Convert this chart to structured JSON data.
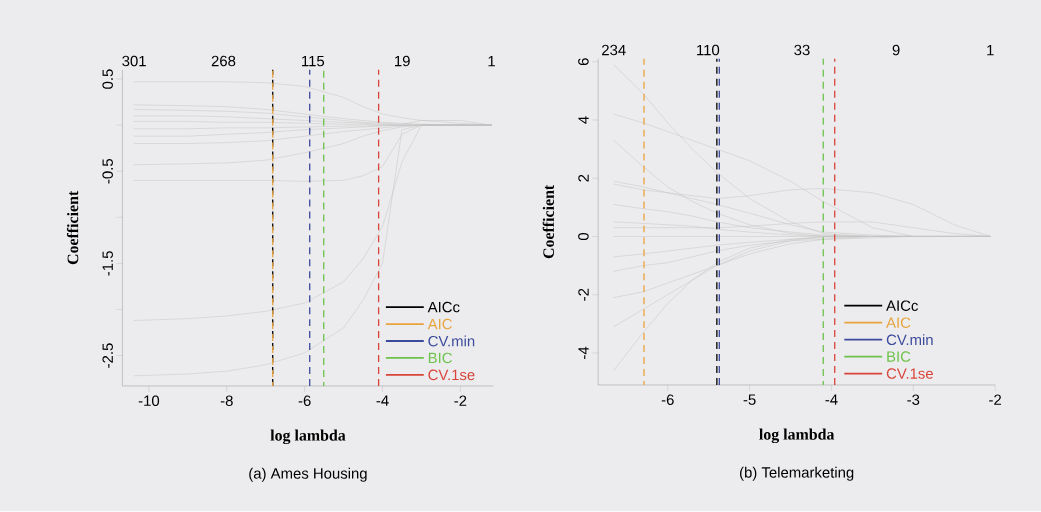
{
  "chart_data": [
    {
      "type": "line",
      "title": "(a) Ames Housing",
      "xlabel": "log lambda",
      "ylabel": "Coefficient",
      "legend": "bottom right",
      "line_style": "solid",
      "xlim": [
        -10.68,
        -1.15
      ],
      "ylim": [
        -2.83,
        0.6
      ],
      "xticks": [
        -10,
        -8,
        -6,
        -4,
        -2
      ],
      "yticks": [
        0.5,
        {
          "value": 0,
          "label": null
        },
        -0.5,
        {
          "value": -1,
          "label": null
        },
        -1.5,
        {
          "value": -2,
          "label": null
        },
        -2.5
      ],
      "annotations": [
        "301",
        "268",
        "115",
        "19",
        "1"
      ],
      "x": [
        -10.38,
        -9,
        -8,
        -7,
        -6,
        -5,
        -4.5,
        -4,
        -3.5,
        -3,
        -2,
        -1.2
      ],
      "series": [
        {
          "color": "#c4c4c4",
          "values": [
            0.47,
            0.47,
            0.47,
            0.46,
            0.42,
            0.3,
            0.2,
            0.12,
            0.08,
            0.05,
            0.02,
            0
          ]
        },
        {
          "color": "#c4c4c4",
          "values": [
            0.22,
            0.21,
            0.2,
            0.17,
            0.12,
            0.07,
            0.05,
            0.03,
            0.02,
            0.01,
            0,
            0
          ]
        },
        {
          "color": "#c4c4c4",
          "values": [
            0.17,
            0.16,
            0.15,
            0.13,
            0.09,
            0.05,
            0.03,
            0.02,
            0.01,
            0.05,
            0.05,
            0
          ]
        },
        {
          "color": "#c4c4c4",
          "values": [
            0.1,
            0.1,
            0.09,
            0.07,
            0.05,
            0.03,
            0.02,
            0.01,
            0,
            0,
            0,
            0
          ]
        },
        {
          "color": "#c4c4c4",
          "values": [
            0.04,
            0.04,
            0.03,
            0.03,
            0.02,
            0.01,
            0.01,
            0,
            0,
            0,
            0,
            0
          ]
        },
        {
          "color": "#c4c4c4",
          "values": [
            -0.04,
            -0.04,
            -0.03,
            -0.03,
            -0.02,
            -0.01,
            -0.01,
            0,
            0,
            0,
            0,
            0
          ]
        },
        {
          "color": "#c4c4c4",
          "values": [
            -0.12,
            -0.12,
            -0.1,
            -0.08,
            -0.05,
            -0.03,
            -0.02,
            -0.01,
            0,
            0,
            0,
            0
          ]
        },
        {
          "color": "#c4c4c4",
          "values": [
            -0.2,
            -0.2,
            -0.19,
            -0.17,
            -0.12,
            -0.07,
            -0.05,
            -0.03,
            -0.01,
            0,
            0,
            0
          ]
        },
        {
          "color": "#c4c4c4",
          "values": [
            -0.43,
            -0.42,
            -0.41,
            -0.38,
            -0.3,
            -0.2,
            -0.12,
            -0.06,
            -0.02,
            0,
            0,
            0
          ]
        },
        {
          "color": "#c4c4c4",
          "values": [
            -0.6,
            -0.6,
            -0.6,
            -0.6,
            -0.61,
            -0.6,
            -0.55,
            -0.45,
            -0.1,
            0,
            0,
            0
          ]
        },
        {
          "color": "#c4c4c4",
          "values": [
            -2.12,
            -2.1,
            -2.07,
            -2.02,
            -1.93,
            -1.7,
            -1.45,
            -1.1,
            -0.4,
            0,
            0,
            0
          ]
        },
        {
          "color": "#c4c4c4",
          "values": [
            -2.72,
            -2.7,
            -2.67,
            -2.6,
            -2.47,
            -2.2,
            -1.9,
            -1.5,
            -0.05,
            0,
            0,
            0
          ]
        }
      ],
      "ref_lines": [
        {
          "axis": "x",
          "value": -6.82,
          "label": "AICc",
          "color": "#000000",
          "line_style": "dashed"
        },
        {
          "axis": "x",
          "value": -6.82,
          "label": "AIC",
          "color": "#e8a33d",
          "line_style": "dashed"
        },
        {
          "axis": "x",
          "value": -5.87,
          "label": "CV.min",
          "color": "#3c4a9c",
          "line_style": "dashed"
        },
        {
          "axis": "x",
          "value": -5.51,
          "label": "BIC",
          "color": "#6cc24a",
          "line_style": "dashed"
        },
        {
          "axis": "x",
          "value": -4.1,
          "label": "CV.1se",
          "color": "#d9443a",
          "line_style": "dashed"
        }
      ]
    },
    {
      "type": "line",
      "title": "(b) Telemarketing",
      "xlabel": "log lambda",
      "ylabel": "Coefficient",
      "legend": "bottom right",
      "line_style": "solid",
      "xlim": [
        -6.85,
        -2.0
      ],
      "ylim": [
        -5.1,
        6.1
      ],
      "xticks": [
        -6,
        -5,
        -4,
        -3,
        -2
      ],
      "yticks": [
        6,
        4,
        2,
        0,
        -2,
        -4
      ],
      "annotations": [
        "234",
        "110",
        "33",
        "9",
        "1"
      ],
      "x": [
        -6.66,
        -6.3,
        -6,
        -5.7,
        -5.4,
        -5,
        -4.5,
        -4.1,
        -3.5,
        -3,
        -2.5,
        -2.06
      ],
      "series": [
        {
          "color": "#c4c4c4",
          "values": [
            5.9,
            4.9,
            3.9,
            3.0,
            2.2,
            1.3,
            0.5,
            0.1,
            0,
            0,
            0,
            0
          ]
        },
        {
          "color": "#c4c4c4",
          "values": [
            4.2,
            3.9,
            3.6,
            3.3,
            3.0,
            2.6,
            1.9,
            1.2,
            0.3,
            0,
            0,
            0
          ]
        },
        {
          "color": "#c4c4c4",
          "values": [
            3.3,
            2.4,
            1.7,
            1.2,
            0.8,
            0.4,
            0.1,
            0,
            0,
            0,
            0,
            0
          ]
        },
        {
          "color": "#c4c4c4",
          "values": [
            1.8,
            1.6,
            1.5,
            1.4,
            1.3,
            1.4,
            1.6,
            1.65,
            1.5,
            1.1,
            0.4,
            0
          ]
        },
        {
          "color": "#c4c4c4",
          "values": [
            1.9,
            1.7,
            1.5,
            1.3,
            1.1,
            0.8,
            0.4,
            0.15,
            0.05,
            0,
            0,
            0
          ]
        },
        {
          "color": "#c4c4c4",
          "values": [
            1.1,
            0.95,
            0.85,
            0.7,
            0.5,
            0.3,
            0.15,
            0.05,
            0,
            0,
            0,
            0
          ]
        },
        {
          "color": "#c4c4c4",
          "values": [
            0.5,
            0.45,
            0.4,
            0.35,
            0.25,
            0.15,
            0.05,
            0.02,
            0,
            0,
            0,
            0
          ]
        },
        {
          "color": "#c4c4c4",
          "values": [
            0.3,
            0.3,
            0.3,
            0.3,
            0.3,
            0.35,
            0.45,
            0.5,
            0.5,
            0.3,
            0.1,
            0
          ]
        },
        {
          "color": "#c4c4c4",
          "values": [
            0,
            0,
            0,
            0,
            0,
            0,
            0,
            0,
            0,
            0,
            0,
            0
          ]
        },
        {
          "color": "#c4c4c4",
          "values": [
            -0.7,
            -0.6,
            -0.5,
            -0.4,
            -0.3,
            -0.2,
            -0.1,
            -0.05,
            0,
            0,
            0,
            0
          ]
        },
        {
          "color": "#c4c4c4",
          "values": [
            -1.2,
            -1.0,
            -0.9,
            -0.7,
            -0.5,
            -0.3,
            -0.15,
            -0.1,
            -0.05,
            0,
            0,
            0
          ]
        },
        {
          "color": "#c4c4c4",
          "values": [
            -2.1,
            -1.9,
            -1.6,
            -1.3,
            -1.0,
            -0.6,
            -0.25,
            -0.1,
            0,
            0,
            0,
            0
          ]
        },
        {
          "color": "#c4c4c4",
          "values": [
            -3.1,
            -2.5,
            -2.0,
            -1.5,
            -1.0,
            -0.5,
            -0.15,
            0,
            0,
            0,
            0,
            0
          ]
        },
        {
          "color": "#c4c4c4",
          "values": [
            -4.6,
            -3.3,
            -2.3,
            -1.5,
            -0.9,
            -0.4,
            -0.1,
            0,
            0,
            0,
            0,
            0
          ]
        }
      ],
      "ref_lines": [
        {
          "axis": "x",
          "value": -5.4,
          "label": "AICc",
          "color": "#000000",
          "line_style": "dashed"
        },
        {
          "axis": "x",
          "value": -6.29,
          "label": "AIC",
          "color": "#e8a33d",
          "line_style": "dashed"
        },
        {
          "axis": "x",
          "value": -5.37,
          "label": "CV.min",
          "color": "#3c4a9c",
          "line_style": "dashed"
        },
        {
          "axis": "x",
          "value": -4.1,
          "label": "BIC",
          "color": "#6cc24a",
          "line_style": "dashed"
        },
        {
          "axis": "x",
          "value": -3.96,
          "label": "CV.1se",
          "color": "#d9443a",
          "line_style": "dashed"
        }
      ]
    }
  ]
}
